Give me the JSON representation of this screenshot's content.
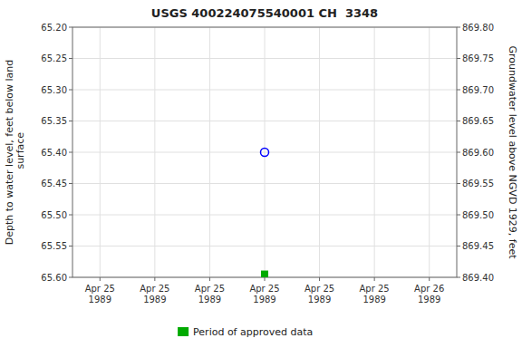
{
  "chart_data": {
    "type": "scatter",
    "title": "USGS 400224075540001 CH  3348",
    "categories": [
      "Apr 25\n1989",
      "Apr 25\n1989",
      "Apr 25\n1989",
      "Apr 25\n1989",
      "Apr 25\n1989",
      "Apr 25\n1989",
      "Apr 26\n1989"
    ],
    "ylabel": "Depth to water level, feet below land\n surface",
    "y2label": "Groundwater level above NGVD 1929, feet",
    "ylim": [
      65.6,
      65.2
    ],
    "yticks": [
      {
        "value": 65.2,
        "label": "65.20"
      },
      65.25,
      {
        "value": 65.3,
        "label": "65.30"
      },
      65.35,
      {
        "value": 65.4,
        "label": "65.40"
      },
      65.45,
      {
        "value": 65.5,
        "label": "65.50"
      },
      65.55,
      {
        "value": 65.6,
        "label": "65.60"
      }
    ],
    "y2lim": [
      869.4,
      869.8
    ],
    "y2ticks": [
      {
        "value": 869.4,
        "label": "869.40"
      },
      869.45,
      {
        "value": 869.5,
        "label": "869.50"
      },
      869.55,
      {
        "value": 869.6,
        "label": "869.60"
      },
      869.65,
      {
        "value": 869.7,
        "label": "869.70"
      },
      869.75,
      {
        "value": 869.8,
        "label": "869.80"
      }
    ],
    "series": [
      {
        "color": "blue",
        "marker": "circle",
        "values": [
          null,
          null,
          null,
          65.4,
          null,
          null,
          null
        ]
      },
      {
        "name": "Period of approved data",
        "color": "#00aa00",
        "marker": "square",
        "values": [
          null,
          null,
          null,
          65.595,
          null,
          null,
          null
        ]
      }
    ],
    "grid": true,
    "legend": "bottom"
  }
}
